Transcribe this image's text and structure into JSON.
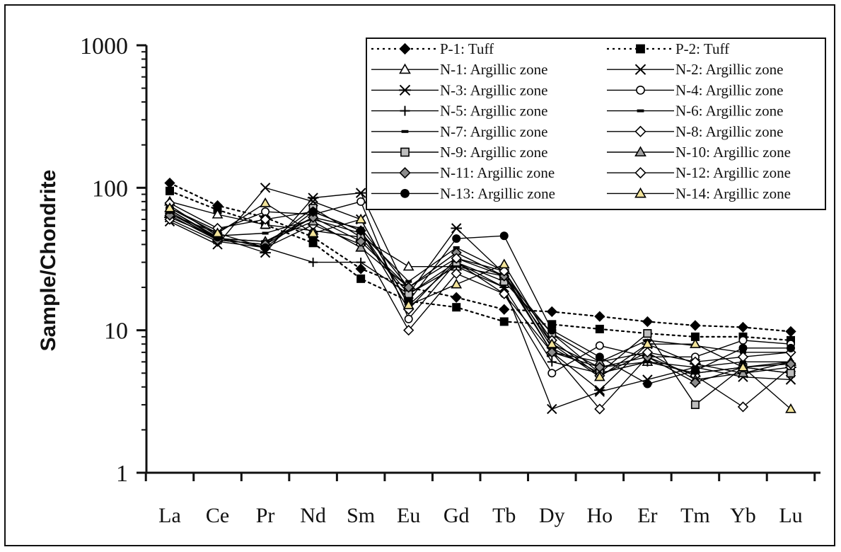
{
  "chart_data": {
    "type": "line",
    "ylabel": "Sample/Chondrite",
    "yscale": "log",
    "ylim": [
      1,
      1000
    ],
    "yticks": [
      "1",
      "10",
      "100",
      "1000"
    ],
    "categories": [
      "La",
      "Ce",
      "Pr",
      "Nd",
      "Sm",
      "Eu",
      "Gd",
      "Tb",
      "Dy",
      "Ho",
      "Er",
      "Tm",
      "Yb",
      "Lu"
    ],
    "legend_position": "top-right",
    "series": [
      {
        "name": "P-1: Tuff",
        "style": "dotted",
        "marker": "diamond",
        "fill": "#000000",
        "values": [
          108,
          75,
          62,
          45,
          27,
          20,
          17,
          14,
          13.5,
          12.5,
          11.5,
          10.8,
          10.5,
          9.8
        ]
      },
      {
        "name": "P-2: Tuff",
        "style": "dotted",
        "marker": "square",
        "fill": "#000000",
        "values": [
          95,
          70,
          55,
          41,
          23,
          16,
          14.5,
          11.5,
          11,
          10.2,
          9.5,
          9,
          9,
          8.5
        ]
      },
      {
        "name": "N-1: Argillic zone",
        "style": "solid",
        "marker": "triangle",
        "fill": "#ffffff",
        "values": [
          80,
          65,
          55,
          50,
          45,
          28,
          28,
          24,
          8,
          5.5,
          6,
          5,
          5.5,
          6
        ]
      },
      {
        "name": "N-2:  Argillic zone",
        "style": "solid",
        "marker": "x",
        "fill": "none",
        "values": [
          58,
          40,
          100,
          80,
          60,
          15,
          30,
          20,
          2.8,
          3.7,
          4.5,
          5.5,
          4.7,
          4.5
        ]
      },
      {
        "name": "N-3:  Argillic zone",
        "style": "solid",
        "marker": "star",
        "fill": "none",
        "values": [
          62,
          45,
          35,
          85,
          92,
          18,
          52,
          25,
          7,
          3.8,
          8,
          5.8,
          5,
          5.5
        ]
      },
      {
        "name": "N-4:  Argillic zone",
        "style": "solid",
        "marker": "circle",
        "fill": "#ffffff",
        "values": [
          72,
          50,
          68,
          65,
          80,
          12,
          30,
          18,
          5,
          7.8,
          6.5,
          6.5,
          8.5,
          8
        ]
      },
      {
        "name": "N-5:  Argillic zone",
        "style": "solid",
        "marker": "plus",
        "fill": "none",
        "values": [
          65,
          48,
          38,
          30,
          30,
          18,
          28,
          20,
          6,
          5,
          6,
          5,
          5.5,
          5
        ]
      },
      {
        "name": "N-6:  Argillic zone",
        "style": "solid",
        "marker": "dash",
        "fill": "none",
        "values": [
          70,
          44,
          42,
          62,
          52,
          20,
          35,
          24,
          9.5,
          6,
          8.5,
          7.8,
          7,
          7
        ]
      },
      {
        "name": "N-7:  Argillic zone",
        "style": "solid",
        "marker": "dash",
        "fill": "none",
        "values": [
          75,
          46,
          48,
          60,
          48,
          22,
          38,
          26,
          7.5,
          5,
          6,
          5.5,
          6,
          6
        ]
      },
      {
        "name": "N-8:  Argillic zone",
        "style": "solid",
        "marker": "diamond",
        "fill": "#ffffff",
        "values": [
          60,
          42,
          38,
          55,
          40,
          10,
          25,
          18,
          7,
          2.8,
          6.5,
          4.8,
          2.9,
          5.5
        ]
      },
      {
        "name": "N-9:  Argillic zone",
        "style": "solid",
        "marker": "square",
        "fill": "#bdbdbd",
        "values": [
          68,
          43,
          40,
          72,
          45,
          18,
          30,
          22,
          9.5,
          5,
          9.5,
          3,
          5.5,
          5
        ]
      },
      {
        "name": "N-10:  Argillic zone",
        "style": "solid",
        "marker": "triangle",
        "fill": "#a0a0a0",
        "values": [
          66,
          44,
          42,
          58,
          38,
          20,
          32,
          24,
          7,
          6,
          7,
          4.5,
          5,
          6
        ]
      },
      {
        "name": "N-11:  Argillic zone",
        "style": "solid",
        "marker": "diamond",
        "fill": "#8c8c8c",
        "values": [
          64,
          43,
          40,
          62,
          42,
          20,
          35,
          24,
          7,
          5.5,
          6.5,
          4.3,
          5.5,
          5.8
        ]
      },
      {
        "name": "N-12: Argillic zone",
        "style": "solid",
        "marker": "diamond",
        "fill": "#ffffff",
        "values": [
          78,
          52,
          60,
          68,
          50,
          14,
          32,
          26,
          8.5,
          4.8,
          7,
          6,
          6.5,
          7
        ]
      },
      {
        "name": "N-13:  Argillic zone",
        "style": "solid",
        "marker": "circle",
        "fill": "#000000",
        "values": [
          70,
          45,
          38,
          68,
          50,
          16,
          44,
          46,
          10,
          6.5,
          4.2,
          5.2,
          7.5,
          7.5
        ]
      },
      {
        "name": "N-14:  Argillic zone",
        "style": "solid",
        "marker": "triangle",
        "fill": "#f2e39a",
        "values": [
          72,
          48,
          78,
          48,
          60,
          15,
          21,
          29,
          8,
          4.7,
          8,
          8,
          5.5,
          2.8
        ]
      }
    ]
  }
}
